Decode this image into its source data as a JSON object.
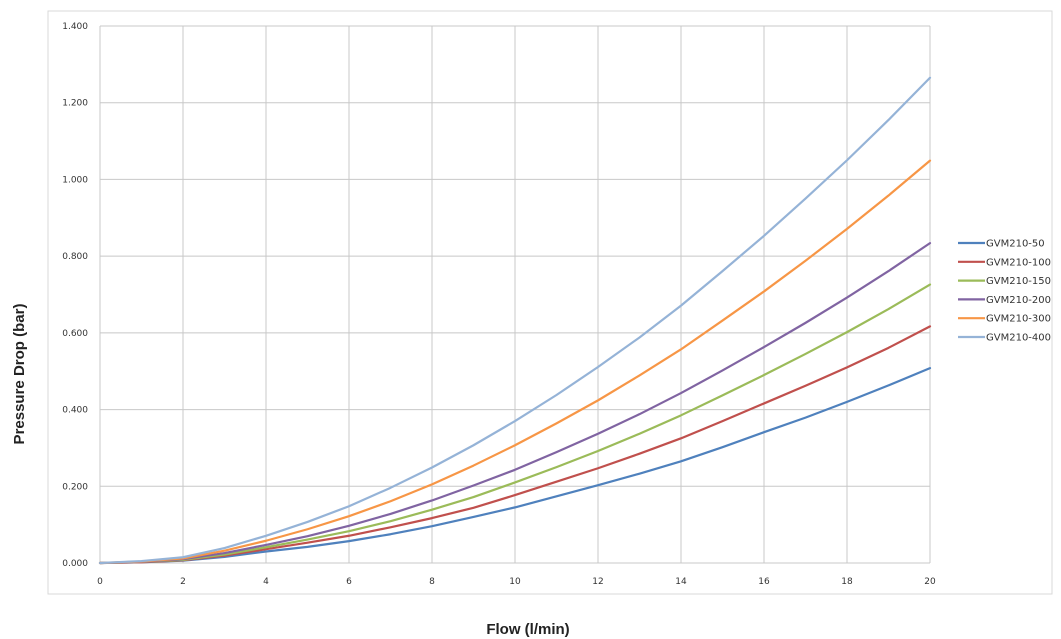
{
  "chart_data": {
    "type": "line",
    "xlabel": "Flow (l/min)",
    "ylabel": "Pressure Drop (bar)",
    "xlim": [
      0,
      20
    ],
    "ylim": [
      0,
      1.4
    ],
    "grid": true,
    "legend_position": "right",
    "x_tick_labels": [
      "0",
      "2",
      "4",
      "6",
      "8",
      "10",
      "12",
      "14",
      "16",
      "18",
      "20"
    ],
    "y_tick_labels": [
      "0.000",
      "0.200",
      "0.400",
      "0.600",
      "0.800",
      "1.000",
      "1.200",
      "1.400"
    ],
    "x": [
      0,
      1,
      2,
      3,
      4,
      5,
      6,
      7,
      8,
      9,
      10,
      11,
      12,
      13,
      14,
      15,
      16,
      17,
      18,
      19,
      20
    ],
    "series": [
      {
        "name": "GVM210-50",
        "color": "#4f81bd",
        "values": [
          0.0,
          0.002,
          0.006,
          0.016,
          0.03,
          0.042,
          0.057,
          0.075,
          0.096,
          0.12,
          0.145,
          0.174,
          0.203,
          0.233,
          0.265,
          0.302,
          0.341,
          0.379,
          0.42,
          0.463,
          0.508
        ]
      },
      {
        "name": "GVM210-100",
        "color": "#c0504d",
        "values": [
          0.0,
          0.002,
          0.007,
          0.019,
          0.036,
          0.053,
          0.071,
          0.093,
          0.117,
          0.144,
          0.177,
          0.212,
          0.247,
          0.285,
          0.325,
          0.37,
          0.416,
          0.462,
          0.51,
          0.561,
          0.617
        ]
      },
      {
        "name": "GVM210-150",
        "color": "#9bbb59",
        "values": [
          0.0,
          0.003,
          0.008,
          0.022,
          0.041,
          0.061,
          0.083,
          0.109,
          0.139,
          0.172,
          0.21,
          0.25,
          0.292,
          0.337,
          0.385,
          0.437,
          0.49,
          0.545,
          0.602,
          0.662,
          0.726
        ]
      },
      {
        "name": "GVM210-200",
        "color": "#8064a2",
        "values": [
          0.0,
          0.003,
          0.01,
          0.026,
          0.047,
          0.07,
          0.097,
          0.128,
          0.163,
          0.202,
          0.243,
          0.289,
          0.337,
          0.388,
          0.443,
          0.502,
          0.563,
          0.626,
          0.692,
          0.761,
          0.834
        ]
      },
      {
        "name": "GVM210-300",
        "color": "#f79646",
        "values": [
          0.0,
          0.004,
          0.012,
          0.032,
          0.058,
          0.088,
          0.122,
          0.161,
          0.205,
          0.254,
          0.307,
          0.364,
          0.424,
          0.489,
          0.557,
          0.632,
          0.708,
          0.788,
          0.871,
          0.958,
          1.049
        ]
      },
      {
        "name": "GVM210-400",
        "color": "#95b3d7",
        "values": [
          0.0,
          0.005,
          0.015,
          0.039,
          0.071,
          0.107,
          0.148,
          0.196,
          0.249,
          0.307,
          0.37,
          0.438,
          0.511,
          0.588,
          0.671,
          0.761,
          0.853,
          0.95,
          1.05,
          1.155,
          1.265
        ]
      }
    ]
  }
}
